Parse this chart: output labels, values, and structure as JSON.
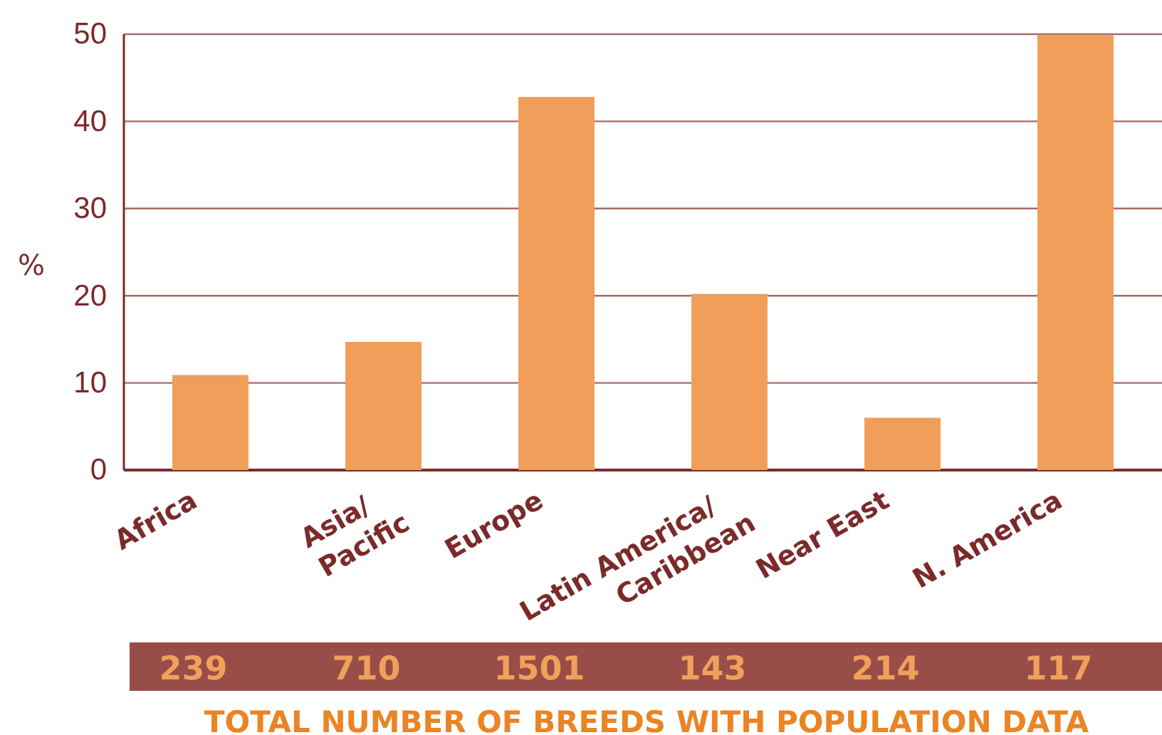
{
  "chart_data": {
    "type": "bar",
    "ylabel": "%",
    "xlabel": "TOTAL NUMBER OF BREEDS WITH POPULATION DATA",
    "categories": [
      "Africa",
      "Asia/Pacific",
      "Europe",
      "Latin America/Caribbean",
      "Near East",
      "N. America"
    ],
    "values": [
      10.9,
      14.7,
      42.8,
      20.2,
      6.0,
      49.9
    ],
    "color": "#f09e5a",
    "ylim": [
      0,
      50
    ],
    "yticks": [
      0,
      10,
      20,
      30,
      40,
      50
    ],
    "grid": "y",
    "annotations": [
      "239",
      "710",
      "1501",
      "143",
      "214",
      "117"
    ]
  }
}
